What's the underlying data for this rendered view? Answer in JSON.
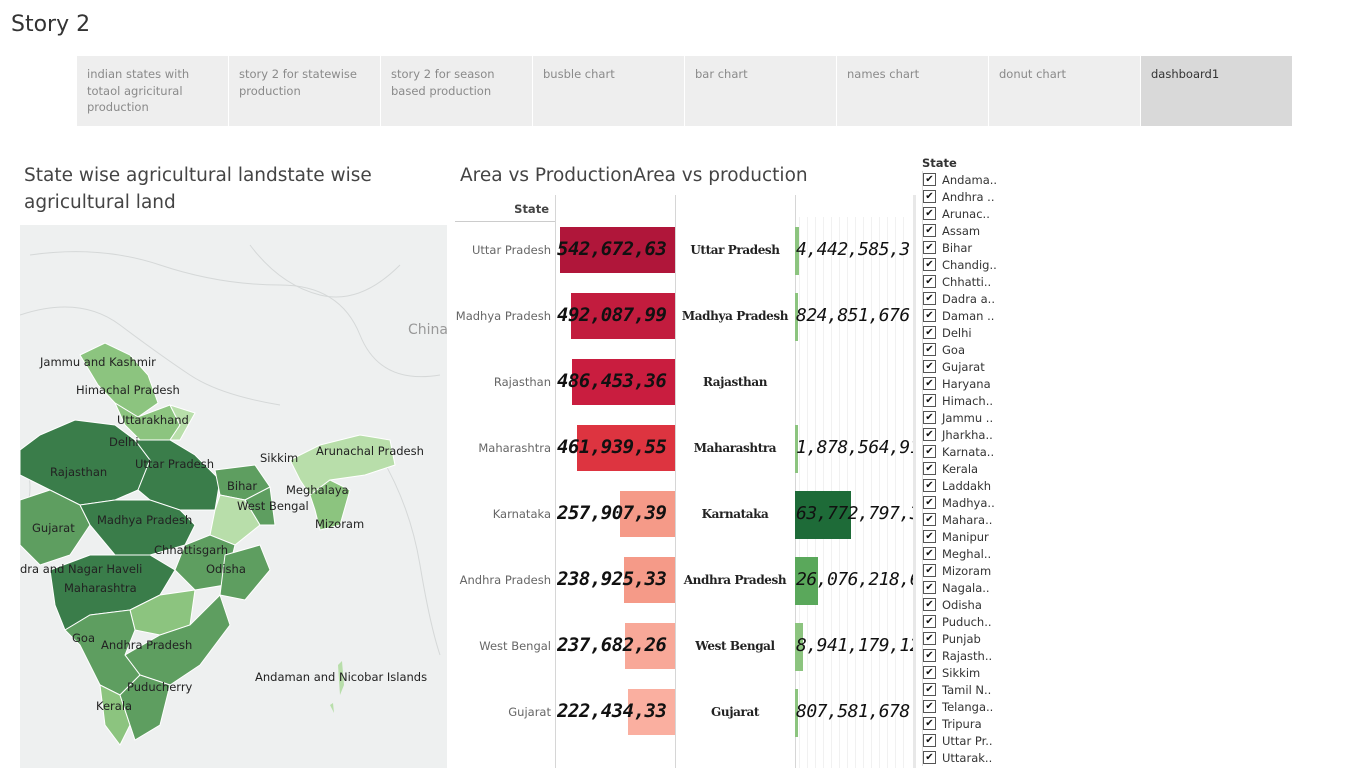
{
  "story_title": "Story 2",
  "tabs": [
    {
      "label": "indian states with totaol agricitural production",
      "active": false
    },
    {
      "label": "story 2 for statewise production",
      "active": false
    },
    {
      "label": "story 2 for season based production",
      "active": false
    },
    {
      "label": "busble chart",
      "active": false
    },
    {
      "label": "bar chart",
      "active": false
    },
    {
      "label": "names chart",
      "active": false
    },
    {
      "label": "donut chart",
      "active": false
    },
    {
      "label": "dashboard1",
      "active": true
    }
  ],
  "map": {
    "title": "State wise agricultural landstate wise agricultural land",
    "neighbor_label": "China",
    "state_labels": [
      "Jammu and Kashmir",
      "Himachal Pradesh",
      "Uttarakhand",
      "Delhi",
      "Rajasthan",
      "Uttar Pradesh",
      "Sikkim",
      "Arunachal Pradesh",
      "Bihar",
      "Meghalaya",
      "West Bengal",
      "Gujarat",
      "Madhya Pradesh",
      "Mizoram",
      "Chhattisgarh",
      "Odisha",
      "dra and Nagar Haveli",
      "Maharashtra",
      "Goa",
      "Andhra Pradesh",
      "Puducherry",
      "Andaman and Nicobar Islands",
      "Kerala"
    ],
    "colors": {
      "dark": "#3a7d4a",
      "mid": "#5e9e60",
      "light": "#8cc47f",
      "pale": "#b8deaa",
      "bg": "#eef0f0"
    }
  },
  "chart_data": {
    "type": "bar",
    "title": "Area vs ProductionArea vs production",
    "column_header": "State",
    "categories": [
      "Uttar Pradesh",
      "Madhya Pradesh",
      "Rajasthan",
      "Maharashtra",
      "Karnataka",
      "Andhra Pradesh",
      "West Bengal",
      "Gujarat"
    ],
    "series": [
      {
        "values": [
          542672630,
          492087990,
          486453360,
          461939550,
          257907390,
          238925330,
          237682260,
          222434330
        ],
        "labels": [
          "542,672,63",
          "492,087,99",
          "486,453,36",
          "461,939,55",
          "257,907,39",
          "238,925,33",
          "237,682,26",
          "222,434,33"
        ],
        "colors": [
          "#b0163a",
          "#c21c3e",
          "#c91d3f",
          "#dd3440",
          "#f59a88",
          "#f59a88",
          "#f8a898",
          "#faafa0"
        ]
      },
      {
        "values": [
          4442585360,
          824851676,
          0,
          1878564919,
          63772797300,
          26076218600,
          8941179120,
          807581678
        ],
        "labels": [
          "4,442,585,3(",
          "824,851,676",
          "",
          "1,878,564,91(",
          "63,772,797,3",
          "26,076,218,6",
          "8,941,179,12(",
          "807,581,678"
        ],
        "colors": [
          "#8cc47f",
          "#8cc47f",
          "#8cc47f",
          "#8cc47f",
          "#1e6b38",
          "#5aa85b",
          "#8cc47f",
          "#8cc47f"
        ]
      }
    ]
  },
  "filter": {
    "title": "State",
    "items": [
      "Andama..",
      "Andhra ..",
      "Arunac..",
      "Assam",
      "Bihar",
      "Chandig..",
      "Chhatti..",
      "Dadra a..",
      "Daman ..",
      "Delhi",
      "Goa",
      "Gujarat",
      "Haryana",
      "Himach..",
      "Jammu ..",
      "Jharkha..",
      "Karnata..",
      "Kerala",
      "Laddakh",
      "Madhya..",
      "Mahara..",
      "Manipur",
      "Meghal..",
      "Mizoram",
      "Nagala..",
      "Odisha",
      "Puduch..",
      "Punjab",
      "Rajasth..",
      "Sikkim",
      "Tamil N..",
      "Telanga..",
      "Tripura",
      "Uttar Pr..",
      "Uttarak.."
    ]
  }
}
